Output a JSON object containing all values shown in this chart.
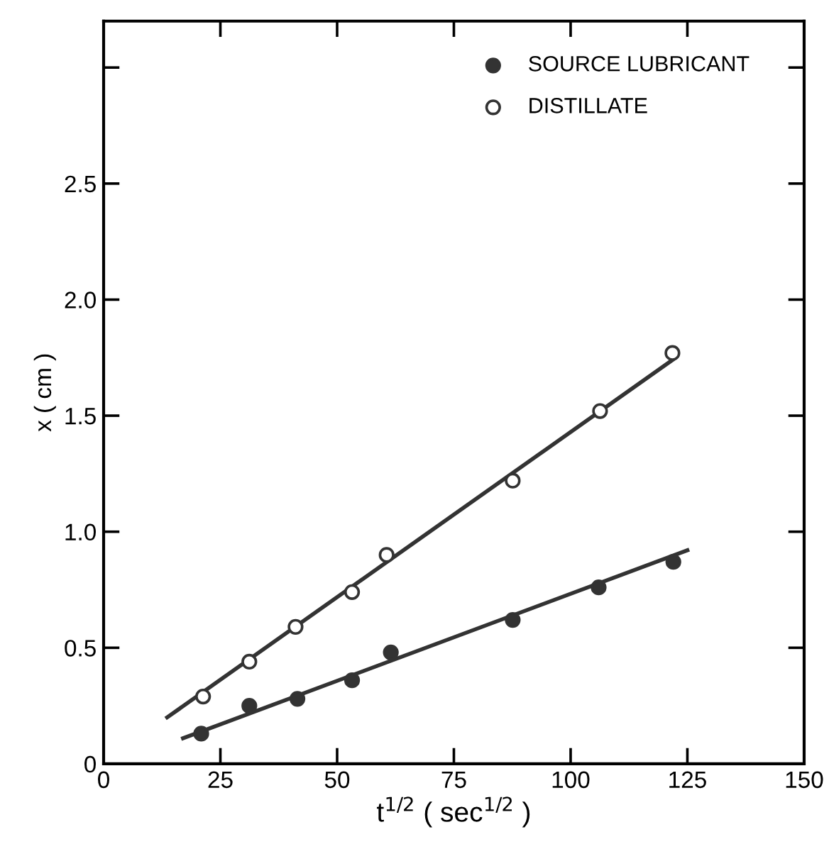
{
  "chart_data": {
    "type": "scatter",
    "xlabel": "t$^{1/2}$ ( sec$^{1/2}$ )",
    "ylabel": "x ( cm )",
    "xlim": [
      0,
      150
    ],
    "ylim": [
      0,
      3.2
    ],
    "xticks": [
      0,
      25,
      50,
      75,
      100,
      125,
      150
    ],
    "yticks": [
      {
        "value": 0,
        "label": "0"
      },
      0.5,
      {
        "value": 1,
        "label": "1.0"
      },
      1.5,
      {
        "value": 2,
        "label": "2.0"
      },
      2.5,
      {
        "value": 3,
        "label": null
      }
    ],
    "grid": false,
    "legend": "top right",
    "marker": "circle",
    "series": [
      {
        "name": "SOURCE LUBRICANT",
        "color": "#333333",
        "x": [
          20.9,
          31.2,
          41.5,
          53.2,
          61.5,
          87.6,
          106.0,
          122.0
        ],
        "values": [
          0.13,
          0.25,
          0.28,
          0.36,
          0.48,
          0.62,
          0.76,
          0.87
        ]
      },
      {
        "name": "DISTILLATE",
        "color": "#ffffff",
        "x": [
          21.3,
          31.2,
          41.1,
          53.2,
          60.6,
          87.6,
          106.3,
          121.8
        ],
        "values": [
          0.29,
          0.44,
          0.59,
          0.74,
          0.9,
          1.22,
          1.52,
          1.77
        ]
      },
      {
        "type": "line",
        "color": "#333333",
        "marker": "none",
        "line_style": "solid",
        "x": [
          17,
          125
        ],
        "values": [
          0.11,
          0.92
        ]
      },
      {
        "type": "line",
        "color": "#333333",
        "marker": "none",
        "line_style": "solid",
        "x": [
          13.6,
          121.8
        ],
        "values": [
          0.2,
          1.74
        ]
      }
    ]
  }
}
